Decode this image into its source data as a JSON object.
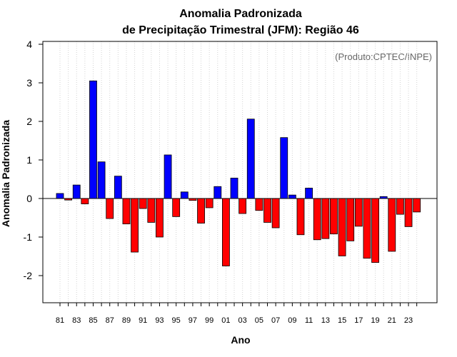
{
  "chart_data": {
    "type": "bar",
    "title": [
      "Anomalia Padronizada",
      "de Precipitação Trimestral (JFM): Região 46"
    ],
    "xlabel": "Ano",
    "ylabel": "Anomalia Padronizada",
    "credit": "(Produto:CPTEC/INPE)",
    "ylim": [
      -2.75,
      4.1
    ],
    "yticks": [
      -2,
      -1,
      0,
      1,
      2,
      3,
      4
    ],
    "grid": "vertical-dotted",
    "positive_color": "#0000ff",
    "negative_color": "#ff0000",
    "categories": [
      "81",
      "82",
      "83",
      "84",
      "85",
      "86",
      "87",
      "88",
      "89",
      "90",
      "91",
      "92",
      "93",
      "94",
      "95",
      "96",
      "97",
      "98",
      "99",
      "00",
      "01",
      "02",
      "03",
      "04",
      "05",
      "06",
      "07",
      "08",
      "09",
      "10",
      "11",
      "12",
      "13",
      "14",
      "15",
      "16",
      "17",
      "18",
      "19",
      "20",
      "21",
      "22",
      "23",
      "24"
    ],
    "xtick_labels": [
      "81",
      "83",
      "85",
      "87",
      "89",
      "91",
      "93",
      "95",
      "97",
      "99",
      "01",
      "03",
      "05",
      "07",
      "09",
      "11",
      "13",
      "15",
      "17",
      "19",
      "21",
      "23"
    ],
    "values": [
      0.13,
      -0.04,
      0.35,
      -0.14,
      3.05,
      0.95,
      -0.52,
      0.58,
      -0.66,
      -1.39,
      -0.26,
      -0.62,
      -1.0,
      1.13,
      -0.47,
      0.17,
      -0.05,
      -0.64,
      -0.24,
      0.31,
      -1.75,
      0.53,
      -0.39,
      2.06,
      -0.31,
      -0.62,
      -0.76,
      1.58,
      0.09,
      -0.94,
      0.27,
      -1.07,
      -1.04,
      -0.92,
      -1.49,
      -1.1,
      -0.72,
      -1.55,
      -1.66,
      0.05,
      -1.37,
      -0.41,
      -0.73,
      -0.35
    ]
  }
}
